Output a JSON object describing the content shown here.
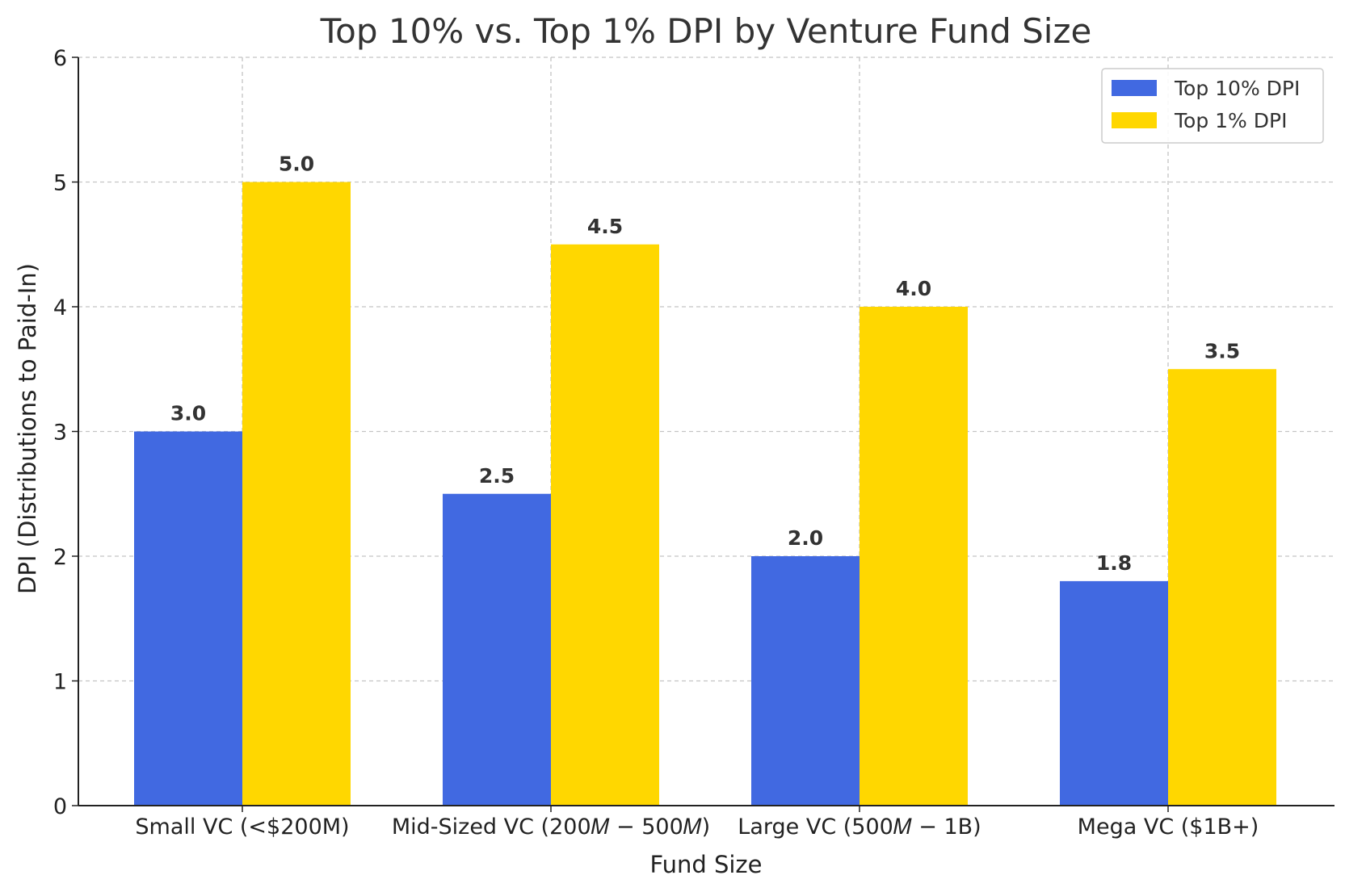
{
  "chart_data": {
    "type": "bar",
    "title": "Top 10% vs. Top 1% DPI by Venture Fund Size",
    "xlabel": "Fund Size",
    "ylabel": "DPI (Distributions to Paid-In)",
    "categories": [
      "Small VC (<$200M)",
      "Mid-Sized VC ($200M-$500M)",
      "Large VC ($500M-$1B)",
      "Mega VC ($1B+)"
    ],
    "categories_rendered": [
      "Small VC (<$200M)",
      "Mid-Sized VC (200𝑀 − 500𝑀)",
      "Large VC (500𝑀 − 1B)",
      "Mega VC ($1B+)"
    ],
    "series": [
      {
        "name": "Top 10% DPI",
        "color": "#4169E1",
        "values": [
          3.0,
          2.5,
          2.0,
          1.8
        ],
        "labels": [
          "3.0",
          "2.5",
          "2.0",
          "1.8"
        ]
      },
      {
        "name": "Top 1% DPI",
        "color": "#FFD700",
        "values": [
          5.0,
          4.5,
          4.0,
          3.5
        ],
        "labels": [
          "5.0",
          "4.5",
          "4.0",
          "3.5"
        ]
      }
    ],
    "ylim": [
      0,
      6
    ],
    "yticks": [
      0,
      1,
      2,
      3,
      4,
      5,
      6
    ],
    "grid": true,
    "legend_position": "top-right"
  }
}
